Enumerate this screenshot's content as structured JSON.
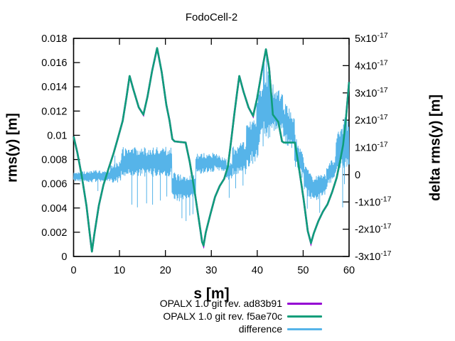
{
  "title": "FodoCell-2",
  "legend": {
    "items": [
      {
        "label": "OPALX 1.0 git rev. ad83b91",
        "color": "#9400d3"
      },
      {
        "label": "OPALX 1.0 git rev. f5ae70c",
        "color": "#0f9e7a"
      },
      {
        "label": "difference",
        "color": "#56b4e9"
      }
    ]
  },
  "chart_data": {
    "type": "line",
    "title": "FodoCell-2",
    "xlabel": "s [m]",
    "ylabel": "rms(y) [m]",
    "y2label": "delta rms(y) [m]",
    "xlim": [
      0,
      60
    ],
    "ylim": [
      0,
      0.018
    ],
    "y2lim": [
      -3e-17,
      5e-17
    ],
    "grid": false,
    "legend_position": "below-plot-right",
    "x_ticks": [
      0,
      10,
      20,
      30,
      40,
      50,
      60
    ],
    "y_ticks": [
      {
        "v": 0,
        "label": "0"
      },
      {
        "v": 0.002,
        "label": "0.002"
      },
      {
        "v": 0.004,
        "label": "0.004"
      },
      {
        "v": 0.006,
        "label": "0.006"
      },
      {
        "v": 0.008,
        "label": "0.008"
      },
      {
        "v": 0.01,
        "label": "0.01"
      },
      {
        "v": 0.012,
        "label": "0.012"
      },
      {
        "v": 0.014,
        "label": "0.014"
      },
      {
        "v": 0.016,
        "label": "0.016"
      },
      {
        "v": 0.018,
        "label": "0.018"
      }
    ],
    "y2_ticks": [
      {
        "v": -3,
        "m": "-3x10",
        "e": "-17"
      },
      {
        "v": -2,
        "m": "-2x10",
        "e": "-17"
      },
      {
        "v": -1,
        "m": "-1x10",
        "e": "-17"
      },
      {
        "v": 0,
        "m": "0",
        "e": ""
      },
      {
        "v": 1,
        "m": "1x10",
        "e": "-17"
      },
      {
        "v": 2,
        "m": "2x10",
        "e": "-17"
      },
      {
        "v": 3,
        "m": "3x10",
        "e": "-17"
      },
      {
        "v": 4,
        "m": "4x10",
        "e": "-17"
      },
      {
        "v": 5,
        "m": "5x10",
        "e": "-17"
      }
    ],
    "series": [
      {
        "name": "OPALX 1.0 git rev. ad83b91",
        "color": "#9400d3",
        "axis": "y1",
        "note": "visually identical to the f5ae70c curve; it is completely hidden underneath it",
        "s": [
          0,
          0.8,
          1.8,
          2.8,
          3.6,
          4.0,
          4.5,
          5.5,
          6.5,
          7.5,
          8.7,
          9.6,
          10.7,
          11.5,
          12.2,
          13.0,
          14.2,
          15.2,
          16.1,
          17.1,
          18.2,
          19.2,
          20.2,
          20.9,
          21.5,
          22.0,
          24.4,
          25.3,
          26.3,
          27.3,
          28.0,
          28.3,
          28.8,
          29.8,
          30.8,
          31.8,
          32.8,
          33.6,
          34.3,
          35.0,
          35.6,
          36.1,
          37.0,
          38.1,
          39.1,
          40.0,
          41.0,
          41.9,
          42.6,
          43.4,
          44.6,
          45.4,
          45.8,
          48.2,
          49.1,
          50.1,
          51.0,
          51.7,
          52.3,
          53.3,
          54.3,
          55.3,
          56.3,
          57.3,
          58.0,
          58.7,
          59.3,
          59.8,
          60.0
        ],
        "rms_y": [
          0.0099,
          0.0086,
          0.0066,
          0.0042,
          0.0016,
          0.0004,
          0.0018,
          0.0042,
          0.0059,
          0.0071,
          0.0085,
          0.0097,
          0.0112,
          0.0131,
          0.0149,
          0.0138,
          0.0123,
          0.0117,
          0.0132,
          0.0153,
          0.0172,
          0.0152,
          0.0125,
          0.0112,
          0.0097,
          0.0095,
          0.0094,
          0.0078,
          0.0055,
          0.003,
          0.0012,
          0.0009,
          0.002,
          0.0035,
          0.0049,
          0.0058,
          0.0064,
          0.0074,
          0.0095,
          0.0117,
          0.0135,
          0.0149,
          0.0136,
          0.0123,
          0.0116,
          0.0131,
          0.0153,
          0.0171,
          0.0155,
          0.0117,
          0.0111,
          0.0095,
          0.0094,
          0.0094,
          0.0073,
          0.0047,
          0.0021,
          0.0011,
          0.0019,
          0.0029,
          0.0037,
          0.0043,
          0.0053,
          0.0065,
          0.0078,
          0.0092,
          0.0113,
          0.0135,
          0.0144
        ],
        "peaks_note": "maxima ~0.0149 at s=12.2/36.1 and ~0.0172 at s=18.2/41.9; minima ~0.0004-0.0012 at s=4.0/28.3/51.7; flat plateaus ~0.0094 at s=21.5-24.4 and 45.8-48.2"
      },
      {
        "name": "OPALX 1.0 git rev. f5ae70c",
        "color": "#0f9e7a",
        "axis": "y1",
        "s": [
          0,
          0.8,
          1.8,
          2.8,
          3.6,
          4.0,
          4.5,
          5.5,
          6.5,
          7.5,
          8.7,
          9.6,
          10.7,
          11.5,
          12.2,
          13.0,
          14.2,
          15.2,
          16.1,
          17.1,
          18.2,
          19.2,
          20.2,
          20.9,
          21.5,
          22.0,
          24.4,
          25.3,
          26.3,
          27.3,
          28.0,
          28.3,
          28.8,
          29.8,
          30.8,
          31.8,
          32.8,
          33.6,
          34.3,
          35.0,
          35.6,
          36.1,
          37.0,
          38.1,
          39.1,
          40.0,
          41.0,
          41.9,
          42.6,
          43.4,
          44.6,
          45.4,
          45.8,
          48.2,
          49.1,
          50.1,
          51.0,
          51.7,
          52.3,
          53.3,
          54.3,
          55.3,
          56.3,
          57.3,
          58.0,
          58.7,
          59.3,
          59.8,
          60.0
        ],
        "rms_y": [
          0.0099,
          0.0086,
          0.0066,
          0.0042,
          0.0016,
          0.0004,
          0.0018,
          0.0042,
          0.0059,
          0.0071,
          0.0085,
          0.0097,
          0.0112,
          0.0131,
          0.0149,
          0.0138,
          0.0123,
          0.0117,
          0.0132,
          0.0153,
          0.0172,
          0.0152,
          0.0125,
          0.0112,
          0.0097,
          0.0095,
          0.0094,
          0.0078,
          0.0055,
          0.003,
          0.0012,
          0.0009,
          0.002,
          0.0035,
          0.0049,
          0.0058,
          0.0064,
          0.0074,
          0.0095,
          0.0117,
          0.0135,
          0.0149,
          0.0136,
          0.0123,
          0.0116,
          0.0131,
          0.0153,
          0.0171,
          0.0155,
          0.0117,
          0.0111,
          0.0095,
          0.0094,
          0.0094,
          0.0073,
          0.0047,
          0.0021,
          0.0011,
          0.0019,
          0.0029,
          0.0037,
          0.0043,
          0.0053,
          0.0065,
          0.0078,
          0.0092,
          0.0113,
          0.0135,
          0.0144
        ]
      },
      {
        "name": "difference",
        "color": "#56b4e9",
        "axis": "y2",
        "units": "1e-17 m",
        "representation": "dense noisy trace shown as a band; envelope segments give [s0,s1,lo0,hi0,lo1,hi1] in units of 1e-17",
        "envelope": [
          [
            0.0,
            3.0,
            -0.25,
            0.12,
            -0.25,
            0.12
          ],
          [
            3.0,
            8.0,
            -0.3,
            0.15,
            -0.25,
            0.2
          ],
          [
            8.0,
            10.4,
            -0.35,
            0.35,
            -0.25,
            0.55
          ],
          [
            10.4,
            21.4,
            -0.1,
            1.02,
            -0.08,
            1.02
          ],
          [
            21.4,
            23.0,
            -0.85,
            0.1,
            -1.0,
            0.12
          ],
          [
            23.0,
            26.6,
            -1.05,
            0.1,
            -0.85,
            0.05
          ],
          [
            26.6,
            30.6,
            0.0,
            0.78,
            0.1,
            0.82
          ],
          [
            30.6,
            33.2,
            0.15,
            0.8,
            0.1,
            0.6
          ],
          [
            33.2,
            34.6,
            -0.3,
            0.45,
            -0.15,
            0.5
          ],
          [
            34.6,
            37.6,
            -0.05,
            1.05,
            0.0,
            1.25
          ],
          [
            37.6,
            39.9,
            0.25,
            2.05,
            0.45,
            2.3
          ],
          [
            39.9,
            41.3,
            0.6,
            3.3,
            0.9,
            3.9
          ],
          [
            41.3,
            42.9,
            1.0,
            4.15,
            1.3,
            3.9
          ],
          [
            42.9,
            45.6,
            1.5,
            3.4,
            1.4,
            3.0
          ],
          [
            45.6,
            48.1,
            1.15,
            2.7,
            0.9,
            2.2
          ],
          [
            48.1,
            50.1,
            0.3,
            1.6,
            -0.25,
            0.75
          ],
          [
            50.1,
            52.1,
            -0.75,
            0.45,
            -1.0,
            0.1
          ],
          [
            52.1,
            55.1,
            -1.0,
            -0.02,
            -0.75,
            0.05
          ],
          [
            55.1,
            57.1,
            -0.5,
            0.35,
            -0.15,
            0.7
          ],
          [
            57.1,
            59.4,
            0.0,
            1.6,
            0.3,
            2.25
          ],
          [
            59.4,
            60.0,
            0.0,
            2.3,
            0.2,
            2.2
          ]
        ],
        "spikes": [
          [
            5.3,
            -0.6
          ],
          [
            9.0,
            0.7
          ],
          [
            12.7,
            -1.1
          ],
          [
            13.9,
            -1.2
          ],
          [
            15.9,
            -1.05
          ],
          [
            17.2,
            -1.1
          ],
          [
            18.9,
            -0.95
          ],
          [
            20.3,
            -0.8
          ],
          [
            23.6,
            -1.6
          ],
          [
            24.5,
            -1.7
          ],
          [
            25.3,
            -1.5
          ],
          [
            26.0,
            -1.45
          ],
          [
            33.9,
            -0.85
          ],
          [
            35.3,
            -0.5
          ],
          [
            36.9,
            -0.4
          ],
          [
            42.0,
            4.35
          ],
          [
            50.9,
            -1.25
          ],
          [
            53.6,
            -1.4
          ],
          [
            58.6,
            -1.2
          ],
          [
            59.0,
            -0.35
          ]
        ],
        "peak_note": "max ~ +4.3e-17 near s=42; min spikes ~ -1.7e-17 near s=24.5; baseline ~0 for s<10"
      }
    ]
  }
}
